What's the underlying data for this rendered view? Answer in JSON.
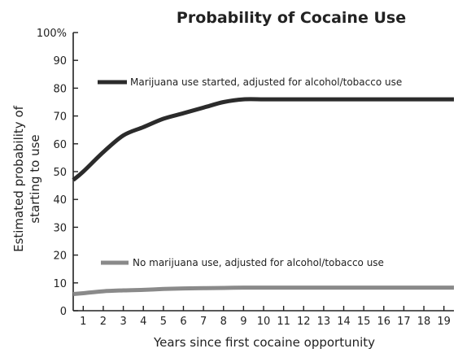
{
  "chart_data": {
    "type": "line",
    "title": "Probability of Cocaine Use",
    "xlabel": "Years since first cocaine opportunity",
    "ylabel_lines": [
      "Estimated probability of",
      "starting to use"
    ],
    "x": [
      0.5,
      1,
      2,
      3,
      4,
      5,
      6,
      7,
      8,
      9,
      10,
      11,
      12,
      13,
      14,
      15,
      16,
      17,
      18,
      19,
      19.5
    ],
    "xticks": [
      1,
      2,
      3,
      4,
      5,
      6,
      7,
      8,
      9,
      10,
      11,
      12,
      13,
      14,
      15,
      16,
      17,
      18,
      19
    ],
    "ylim": [
      0,
      100
    ],
    "yticks": [
      0,
      10,
      20,
      30,
      40,
      50,
      60,
      70,
      80,
      90,
      100
    ],
    "ytick_labels": [
      "0",
      "10",
      "20",
      "30",
      "40",
      "50",
      "60",
      "70",
      "80",
      "90",
      "100%"
    ],
    "grid": false,
    "series": [
      {
        "name": "Marijuana use started, adjusted for alcohol/tobacco use",
        "color": "#2b2b2b",
        "values": [
          47,
          50,
          57,
          63,
          66,
          69,
          71,
          73,
          75,
          76,
          76,
          76,
          76,
          76,
          76,
          76,
          76,
          76,
          76,
          76,
          76
        ]
      },
      {
        "name": "No marijuana use, adjusted for alcohol/tobacco use",
        "color": "#8a8a8a",
        "values": [
          6,
          6.3,
          7,
          7.3,
          7.5,
          7.8,
          8,
          8.1,
          8.2,
          8.3,
          8.3,
          8.3,
          8.3,
          8.3,
          8.3,
          8.3,
          8.3,
          8.3,
          8.3,
          8.3,
          8.3
        ]
      }
    ]
  }
}
